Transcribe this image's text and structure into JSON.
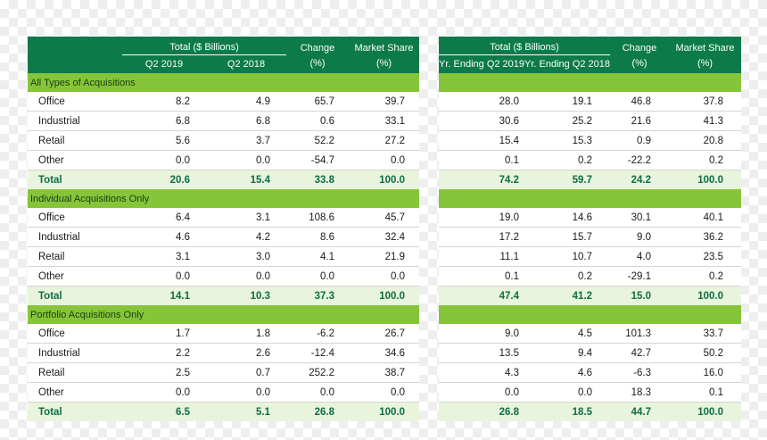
{
  "left": {
    "header": {
      "group": "Total ($ Billions)",
      "col1": "Q2 2019",
      "col2": "Q2 2018",
      "change_top": "Change",
      "change_bottom": "(%)",
      "share_top": "Market Share",
      "share_bottom": "(%)"
    },
    "sections": [
      {
        "title": "All Types of Acquisitions",
        "rows": [
          {
            "label": "Office",
            "v1": "8.2",
            "v2": "4.9",
            "chg": "65.7",
            "share": "39.7"
          },
          {
            "label": "Industrial",
            "v1": "6.8",
            "v2": "6.8",
            "chg": "0.6",
            "share": "33.1"
          },
          {
            "label": "Retail",
            "v1": "5.6",
            "v2": "3.7",
            "chg": "52.2",
            "share": "27.2"
          },
          {
            "label": "Other",
            "v1": "0.0",
            "v2": "0.0",
            "chg": "-54.7",
            "share": "0.0"
          }
        ],
        "total": {
          "label": "Total",
          "v1": "20.6",
          "v2": "15.4",
          "chg": "33.8",
          "share": "100.0"
        }
      },
      {
        "title": "Individual Acquisitions Only",
        "rows": [
          {
            "label": "Office",
            "v1": "6.4",
            "v2": "3.1",
            "chg": "108.6",
            "share": "45.7"
          },
          {
            "label": "Industrial",
            "v1": "4.6",
            "v2": "4.2",
            "chg": "8.6",
            "share": "32.4"
          },
          {
            "label": "Retail",
            "v1": "3.1",
            "v2": "3.0",
            "chg": "4.1",
            "share": "21.9"
          },
          {
            "label": "Other",
            "v1": "0.0",
            "v2": "0.0",
            "chg": "0.0",
            "share": "0.0"
          }
        ],
        "total": {
          "label": "Total",
          "v1": "14.1",
          "v2": "10.3",
          "chg": "37.3",
          "share": "100.0"
        }
      },
      {
        "title": "Portfolio Acquisitions Only",
        "rows": [
          {
            "label": "Office",
            "v1": "1.7",
            "v2": "1.8",
            "chg": "-6.2",
            "share": "26.7"
          },
          {
            "label": "Industrial",
            "v1": "2.2",
            "v2": "2.6",
            "chg": "-12.4",
            "share": "34.6"
          },
          {
            "label": "Retail",
            "v1": "2.5",
            "v2": "0.7",
            "chg": "252.2",
            "share": "38.7"
          },
          {
            "label": "Other",
            "v1": "0.0",
            "v2": "0.0",
            "chg": "0.0",
            "share": "0.0"
          }
        ],
        "total": {
          "label": "Total",
          "v1": "6.5",
          "v2": "5.1",
          "chg": "26.8",
          "share": "100.0"
        }
      }
    ]
  },
  "right": {
    "header": {
      "group": "Total ($ Billions)",
      "col1": "Yr. Ending Q2 2019",
      "col2": "Yr. Ending Q2 2018",
      "change_top": "Change",
      "change_bottom": "(%)",
      "share_top": "Market Share",
      "share_bottom": "(%)"
    },
    "sections": [
      {
        "rows": [
          {
            "v1": "28.0",
            "v2": "19.1",
            "chg": "46.8",
            "share": "37.8"
          },
          {
            "v1": "30.6",
            "v2": "25.2",
            "chg": "21.6",
            "share": "41.3"
          },
          {
            "v1": "15.4",
            "v2": "15.3",
            "chg": "0.9",
            "share": "20.8"
          },
          {
            "v1": "0.1",
            "v2": "0.2",
            "chg": "-22.2",
            "share": "0.2"
          }
        ],
        "total": {
          "v1": "74.2",
          "v2": "59.7",
          "chg": "24.2",
          "share": "100.0"
        }
      },
      {
        "rows": [
          {
            "v1": "19.0",
            "v2": "14.6",
            "chg": "30.1",
            "share": "40.1"
          },
          {
            "v1": "17.2",
            "v2": "15.7",
            "chg": "9.0",
            "share": "36.2"
          },
          {
            "v1": "11.1",
            "v2": "10.7",
            "chg": "4.0",
            "share": "23.5"
          },
          {
            "v1": "0.1",
            "v2": "0.2",
            "chg": "-29.1",
            "share": "0.2"
          }
        ],
        "total": {
          "v1": "47.4",
          "v2": "41.2",
          "chg": "15.0",
          "share": "100.0"
        }
      },
      {
        "rows": [
          {
            "v1": "9.0",
            "v2": "4.5",
            "chg": "101.3",
            "share": "33.7"
          },
          {
            "v1": "13.5",
            "v2": "9.4",
            "chg": "42.7",
            "share": "50.2"
          },
          {
            "v1": "4.3",
            "v2": "4.6",
            "chg": "-6.3",
            "share": "16.0"
          },
          {
            "v1": "0.0",
            "v2": "0.0",
            "chg": "18.3",
            "share": "0.1"
          }
        ],
        "total": {
          "v1": "26.8",
          "v2": "18.5",
          "chg": "44.7",
          "share": "100.0"
        }
      }
    ]
  }
}
